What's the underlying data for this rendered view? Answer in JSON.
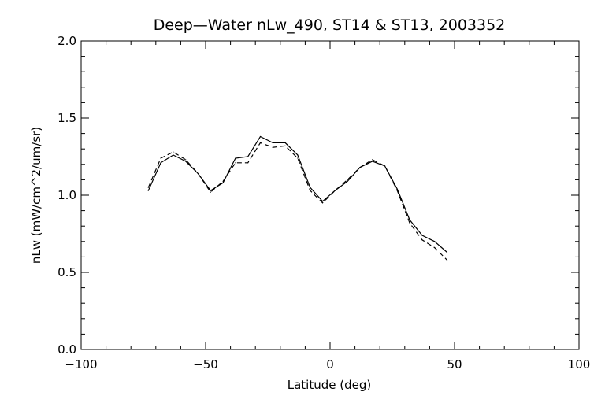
{
  "chart_data": {
    "type": "line",
    "title": "Deep—Water nLw_490, ST14 & ST13, 2003352",
    "xlabel": "Latitude (deg)",
    "ylabel": "nLw (mW/cm^2/um/sr)",
    "xlim": [
      -100,
      100
    ],
    "ylim": [
      0.0,
      2.0
    ],
    "x_ticks": [
      -100,
      -50,
      0,
      50,
      100
    ],
    "y_ticks": [
      0.0,
      0.5,
      1.0,
      1.5,
      2.0
    ],
    "x_tick_labels": [
      "−100",
      "−50",
      "0",
      "50",
      "100"
    ],
    "y_tick_labels": [
      "0.0",
      "0.5",
      "1.0",
      "1.5",
      "2.0"
    ],
    "grid": false,
    "legend": "none",
    "series": [
      {
        "style": "solid",
        "color": "#000000",
        "x": [
          -73,
          -68,
          -63,
          -58,
          -53,
          -48,
          -43,
          -38,
          -33,
          -28,
          -23,
          -18,
          -13,
          -8,
          -3,
          2,
          7,
          12,
          17,
          22,
          27,
          32,
          37,
          42,
          47
        ],
        "y": [
          1.03,
          1.21,
          1.26,
          1.22,
          1.14,
          1.03,
          1.08,
          1.24,
          1.25,
          1.38,
          1.34,
          1.34,
          1.26,
          1.05,
          0.96,
          1.03,
          1.09,
          1.18,
          1.22,
          1.19,
          1.04,
          0.84,
          0.74,
          0.7,
          0.63
        ]
      },
      {
        "style": "dashed",
        "color": "#000000",
        "x": [
          -73,
          -68,
          -63,
          -58,
          -53,
          -48,
          -43,
          -38,
          -33,
          -28,
          -23,
          -18,
          -13,
          -8,
          -3,
          2,
          7,
          12,
          17,
          22,
          27,
          32,
          37,
          42,
          47
        ],
        "y": [
          1.05,
          1.24,
          1.28,
          1.23,
          1.14,
          1.02,
          1.09,
          1.21,
          1.21,
          1.34,
          1.31,
          1.32,
          1.24,
          1.03,
          0.95,
          1.03,
          1.1,
          1.18,
          1.23,
          1.19,
          1.03,
          0.82,
          0.71,
          0.66,
          0.58
        ]
      }
    ]
  }
}
